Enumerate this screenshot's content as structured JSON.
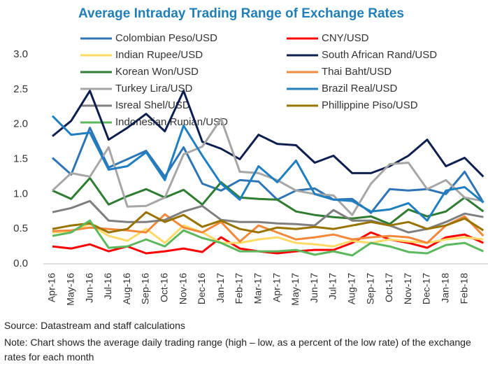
{
  "chart_data": {
    "type": "line",
    "title": "Average Intraday Trading Range of Exchange Rates",
    "source": "Source: Datastream and staff calculations",
    "note": "Note: Chart shows the average daily trading range (high – low, as a percent of the low rate) of the exchange rates for each month",
    "categories": [
      "Apr-16",
      "May-16",
      "Jun-16",
      "Jul-16",
      "Aug-16",
      "Sep-16",
      "Oct-16",
      "Nov-16",
      "Dec-16",
      "Jan-17",
      "Feb-17",
      "Mar-17",
      "Apr-17",
      "May-17",
      "Jun-17",
      "Jul-17",
      "Aug-17",
      "Sep-17",
      "Oct-17",
      "Nov-17",
      "Dec-17",
      "Jan-18",
      "Feb-18",
      null
    ],
    "ylim": [
      0,
      3.1
    ],
    "yticks": [
      {
        "value": 0,
        "label": "0.0"
      },
      0.5,
      {
        "value": 1,
        "label": "1.0"
      },
      1.5,
      {
        "value": 2,
        "label": "2.0"
      },
      2.5,
      {
        "value": 3,
        "label": "3.0"
      }
    ],
    "grid": false,
    "series": [
      {
        "name": "Colombian Peso/USD",
        "color": "#2e75b6",
        "values": [
          1.52,
          1.28,
          1.95,
          1.38,
          1.5,
          1.62,
          1.25,
          1.67,
          1.15,
          1.05,
          1.2,
          1.18,
          0.92,
          1.05,
          1.08,
          0.92,
          0.93,
          0.73,
          1.07,
          1.05,
          1.07,
          1.0,
          1.32,
          0.88
        ]
      },
      {
        "name": "CNY/USD",
        "color": "#ff0000",
        "values": [
          0.25,
          0.22,
          0.28,
          0.18,
          0.25,
          0.15,
          0.18,
          0.22,
          0.17,
          0.38,
          0.22,
          0.18,
          0.15,
          0.18,
          0.2,
          0.2,
          0.3,
          0.45,
          0.35,
          0.3,
          0.23,
          0.38,
          0.42,
          0.3
        ]
      },
      {
        "name": "Indian Rupee/USD",
        "color": "#ffd966",
        "values": [
          0.45,
          0.47,
          0.57,
          0.4,
          0.33,
          0.5,
          0.3,
          0.55,
          0.45,
          0.3,
          0.3,
          0.35,
          0.38,
          0.3,
          0.28,
          0.25,
          0.33,
          0.3,
          0.35,
          0.32,
          0.3,
          0.35,
          0.38,
          0.35
        ]
      },
      {
        "name": "South African Rand/USD",
        "color": "#0d1f4f",
        "values": [
          1.83,
          2.05,
          2.48,
          1.78,
          1.95,
          2.15,
          1.9,
          2.48,
          1.75,
          1.65,
          1.5,
          1.85,
          1.72,
          1.7,
          1.45,
          1.55,
          1.3,
          1.3,
          1.4,
          1.55,
          1.78,
          1.4,
          1.52,
          1.25
        ]
      },
      {
        "name": "Korean Won/USD",
        "color": "#2e7d32",
        "values": [
          1.05,
          0.93,
          1.23,
          0.85,
          0.97,
          1.07,
          0.95,
          1.06,
          0.85,
          1.17,
          0.95,
          0.93,
          0.92,
          0.75,
          0.7,
          0.67,
          0.65,
          0.68,
          0.57,
          0.78,
          0.68,
          0.75,
          0.95,
          0.75
        ]
      },
      {
        "name": "Thai Baht/USD",
        "color": "#f4883a",
        "values": [
          0.47,
          0.48,
          0.52,
          0.5,
          0.48,
          0.45,
          0.71,
          0.52,
          0.45,
          0.6,
          0.32,
          0.55,
          0.45,
          0.35,
          0.38,
          0.42,
          0.35,
          0.38,
          0.4,
          0.38,
          0.3,
          0.55,
          0.68,
          0.4
        ]
      },
      {
        "name": "Turkey Lira/USD",
        "color": "#a6a6a6",
        "values": [
          1.05,
          1.3,
          1.25,
          1.67,
          0.82,
          0.83,
          0.95,
          1.57,
          1.68,
          2.08,
          1.32,
          1.3,
          1.2,
          1.05,
          1.0,
          0.98,
          0.7,
          1.15,
          1.43,
          1.45,
          1.07,
          1.2,
          0.95,
          0.9
        ]
      },
      {
        "name": "Brazil Real/USD",
        "color": "#1f7fc1",
        "values": [
          2.12,
          1.85,
          1.88,
          1.35,
          1.4,
          1.6,
          1.2,
          1.98,
          1.55,
          1.15,
          0.92,
          1.4,
          1.17,
          1.48,
          1.0,
          0.92,
          0.9,
          0.75,
          0.78,
          0.87,
          0.62,
          1.05,
          1.1,
          0.88
        ]
      },
      {
        "name": "Isreal Shel/USD",
        "color": "#7f7f7f",
        "values": [
          0.74,
          0.8,
          0.9,
          0.62,
          0.6,
          0.6,
          0.63,
          0.75,
          0.83,
          0.63,
          0.6,
          0.6,
          0.58,
          0.57,
          0.55,
          0.77,
          0.62,
          0.62,
          0.55,
          0.45,
          0.5,
          0.6,
          0.72,
          0.67
        ]
      },
      {
        "name": "Phillippine Piso/USD",
        "color": "#997300",
        "values": [
          0.5,
          0.55,
          0.58,
          0.45,
          0.5,
          0.74,
          0.6,
          0.7,
          0.53,
          0.62,
          0.5,
          0.45,
          0.52,
          0.5,
          0.53,
          0.5,
          0.55,
          0.6,
          0.55,
          0.6,
          0.5,
          0.55,
          0.65,
          0.48
        ]
      },
      {
        "name": "Indonesian Rupian/USD",
        "color": "#5cb85c",
        "values": [
          0.4,
          0.45,
          0.62,
          0.23,
          0.25,
          0.35,
          0.25,
          0.48,
          0.37,
          0.3,
          0.18,
          0.18,
          0.18,
          0.2,
          0.13,
          0.18,
          0.12,
          0.3,
          0.25,
          0.17,
          0.15,
          0.27,
          0.3,
          0.18
        ]
      }
    ]
  }
}
